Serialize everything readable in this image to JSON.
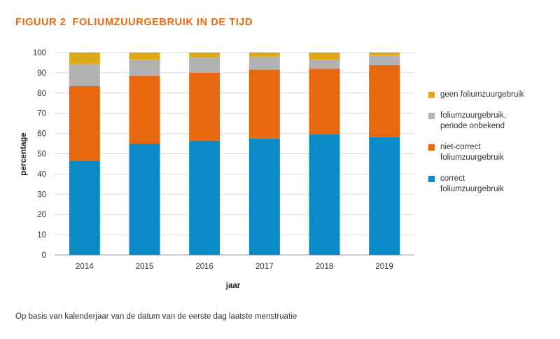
{
  "figure": {
    "number": "FIGUUR 2",
    "title": "FOLIUMZUURGEBRUIK IN DE TIJD"
  },
  "footnote": "Op basis van kalenderjaar van de datum van de eerste dag laatste menstruatie",
  "chart_data": {
    "type": "bar",
    "stacked": true,
    "categories": [
      "2014",
      "2015",
      "2016",
      "2017",
      "2018",
      "2019"
    ],
    "xlabel": "jaar",
    "ylabel": "percentage",
    "ylim": [
      0,
      100
    ],
    "yticks": [
      0,
      10,
      20,
      30,
      40,
      50,
      60,
      70,
      80,
      90,
      100
    ],
    "grid": true,
    "legend_position": "right",
    "series": [
      {
        "name": "correct\nfoliumzuurgebruik",
        "color": "#0a8ac6",
        "values": [
          46.5,
          55,
          56.5,
          57.5,
          59.5,
          58.2
        ]
      },
      {
        "name": "niet-correct\nfoliumzuurgebruik",
        "color": "#e8680f",
        "values": [
          37,
          33.5,
          33.5,
          34,
          32.5,
          35.6
        ]
      },
      {
        "name": "foliumzuurgebruik,\nperiode onbekend",
        "color": "#b2b2b2",
        "values": [
          11,
          8,
          7.5,
          6.5,
          4.5,
          4.7
        ]
      },
      {
        "name": "geen foliumzuurgebruik",
        "color": "#e0a918",
        "values": [
          5.5,
          3.5,
          2.5,
          2,
          3.5,
          1.5
        ]
      }
    ]
  }
}
